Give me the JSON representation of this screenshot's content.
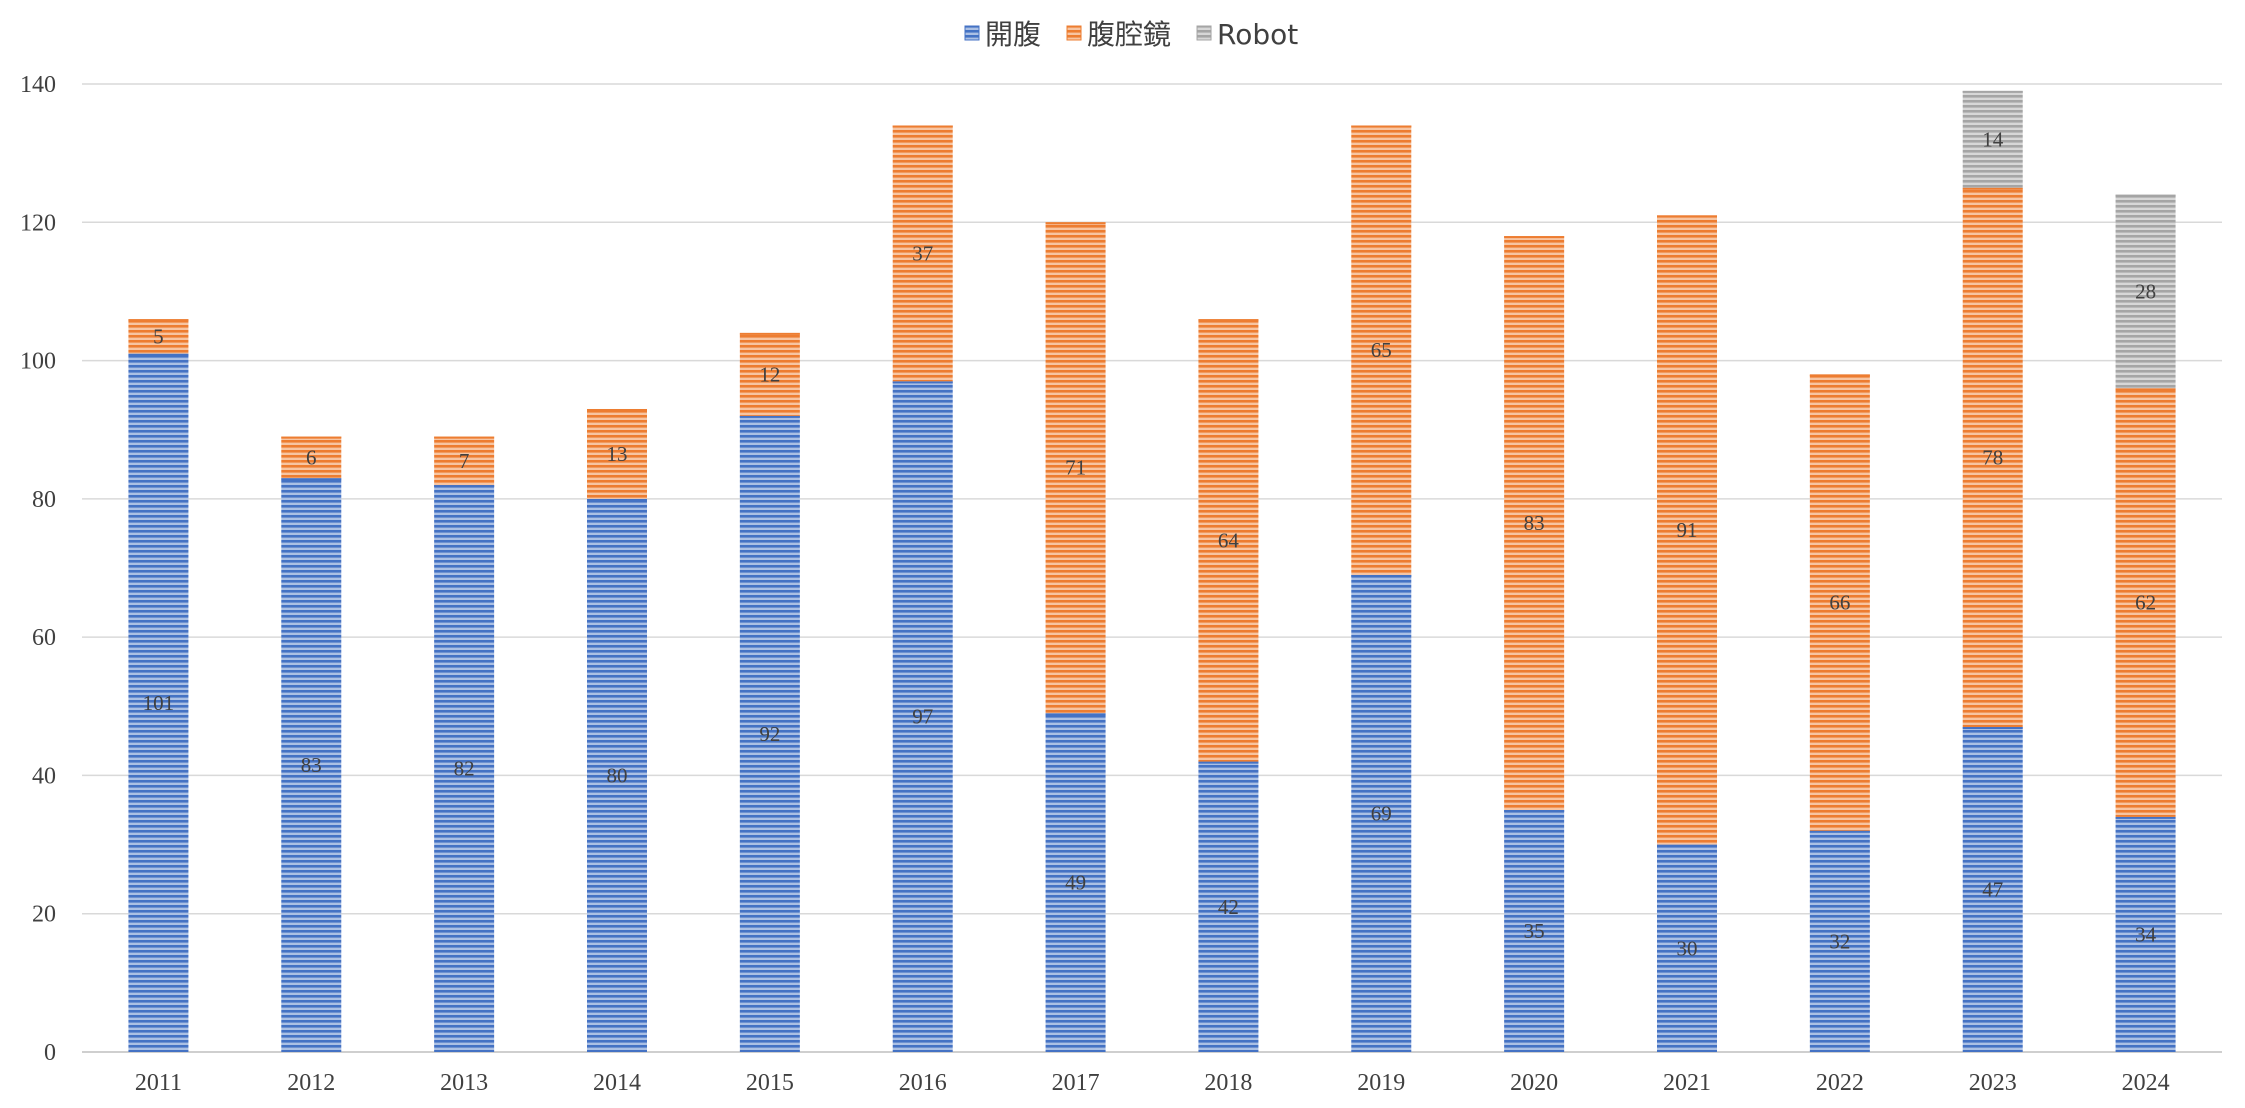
{
  "chart_data": {
    "type": "bar",
    "stacked": true,
    "categories": [
      "2011",
      "2012",
      "2013",
      "2014",
      "2015",
      "2016",
      "2017",
      "2018",
      "2019",
      "2020",
      "2021",
      "2022",
      "2023",
      "2024"
    ],
    "series": [
      {
        "name": "開腹",
        "color": "#4472C4",
        "values": [
          101,
          83,
          82,
          80,
          92,
          97,
          49,
          42,
          69,
          35,
          30,
          32,
          47,
          34
        ]
      },
      {
        "name": "腹腔鏡",
        "color": "#ED7D31",
        "values": [
          5,
          6,
          7,
          13,
          12,
          37,
          71,
          64,
          65,
          83,
          91,
          66,
          78,
          62
        ]
      },
      {
        "name": "Robot",
        "color": "#A5A5A5",
        "values": [
          0,
          0,
          0,
          0,
          0,
          0,
          0,
          0,
          0,
          0,
          0,
          0,
          14,
          28
        ]
      }
    ],
    "ylim": [
      0,
      140
    ],
    "yticks": [
      0,
      20,
      40,
      60,
      80,
      100,
      120,
      140
    ],
    "grid": true,
    "legend": "top-center",
    "fill_pattern": "horizontal-stripes",
    "title": "",
    "xlabel": "",
    "ylabel": ""
  }
}
